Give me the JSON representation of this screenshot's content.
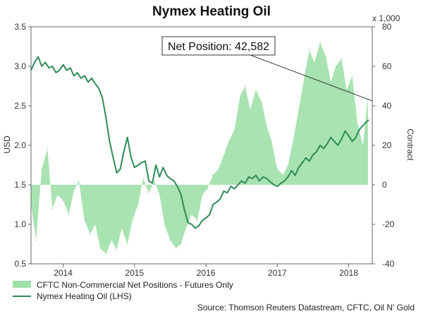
{
  "chart_data": {
    "type": "line",
    "title": "Nymex Heating Oil",
    "left_axis": {
      "label": "USD",
      "ylim": [
        0.5,
        3.5
      ],
      "ticks": [
        "0.5",
        "1.0",
        "1.5",
        "2.0",
        "2.5",
        "3.0",
        "3.5"
      ]
    },
    "right_axis": {
      "label": "Contract",
      "unit_note": "x 1,000",
      "ylim": [
        -40,
        80
      ],
      "ticks": [
        "-40",
        "-20",
        "0",
        "20",
        "40",
        "60",
        "80"
      ]
    },
    "x_axis": {
      "labels": [
        "2014",
        "2015",
        "2016",
        "2017",
        "2018"
      ]
    },
    "callout": {
      "text": "Net Position: 42,582"
    },
    "legend": [
      {
        "label": "CFTC Non-Commercial Net Positions - Futures Only",
        "kind": "area",
        "color": "#9fe0a8"
      },
      {
        "label": "Nymex Heating Oil (LHS)",
        "kind": "line",
        "color": "#2e8b57"
      }
    ],
    "source": "Source: Thomson Reuters Datastream, CFTC, Oil N' Gold",
    "grid": false,
    "legend_placement": "bottom-left",
    "series": [
      {
        "name": "CFTC Non-Commercial Net Positions - Futures Only",
        "axis": "right",
        "kind": "area",
        "x": [
          2013.55,
          2013.62,
          2013.7,
          2013.78,
          2013.85,
          2013.92,
          2014.0,
          2014.08,
          2014.15,
          2014.22,
          2014.3,
          2014.38,
          2014.45,
          2014.52,
          2014.6,
          2014.68,
          2014.75,
          2014.82,
          2014.9,
          2014.97,
          2015.05,
          2015.12,
          2015.2,
          2015.28,
          2015.35,
          2015.42,
          2015.5,
          2015.58,
          2015.65,
          2015.72,
          2015.8,
          2015.88,
          2015.95,
          2016.02,
          2016.1,
          2016.18,
          2016.25,
          2016.32,
          2016.4,
          2016.48,
          2016.55,
          2016.62,
          2016.7,
          2016.78,
          2016.85,
          2016.92,
          2017.0,
          2017.08,
          2017.15,
          2017.22,
          2017.3,
          2017.38,
          2017.45,
          2017.52,
          2017.6,
          2017.68,
          2017.75,
          2017.82,
          2017.9,
          2017.97,
          2018.05,
          2018.12,
          2018.2,
          2018.27
        ],
        "values": [
          -10,
          -28,
          8,
          18,
          -12,
          -5,
          -8,
          -15,
          -3,
          2,
          -18,
          -25,
          -20,
          -32,
          -35,
          -28,
          -33,
          -22,
          -30,
          -18,
          -10,
          3,
          -4,
          2,
          -5,
          -20,
          -28,
          -32,
          -30,
          -22,
          -15,
          -18,
          -5,
          -2,
          5,
          8,
          15,
          22,
          28,
          45,
          50,
          38,
          48,
          42,
          30,
          22,
          8,
          5,
          10,
          22,
          38,
          55,
          68,
          62,
          72,
          65,
          52,
          60,
          64,
          48,
          55,
          32,
          20,
          45
        ]
      },
      {
        "name": "Nymex Heating Oil (LHS)",
        "axis": "left",
        "kind": "line",
        "x": [
          2013.55,
          2013.6,
          2013.65,
          2013.7,
          2013.75,
          2013.8,
          2013.85,
          2013.9,
          2013.95,
          2014.0,
          2014.05,
          2014.1,
          2014.15,
          2014.2,
          2014.25,
          2014.3,
          2014.35,
          2014.4,
          2014.45,
          2014.5,
          2014.55,
          2014.6,
          2014.65,
          2014.7,
          2014.75,
          2014.8,
          2014.85,
          2014.9,
          2014.95,
          2015.0,
          2015.05,
          2015.1,
          2015.15,
          2015.2,
          2015.25,
          2015.3,
          2015.35,
          2015.4,
          2015.45,
          2015.5,
          2015.55,
          2015.6,
          2015.65,
          2015.7,
          2015.75,
          2015.8,
          2015.85,
          2015.9,
          2015.95,
          2016.0,
          2016.05,
          2016.1,
          2016.15,
          2016.2,
          2016.25,
          2016.3,
          2016.35,
          2016.4,
          2016.45,
          2016.5,
          2016.55,
          2016.6,
          2016.65,
          2016.7,
          2016.75,
          2016.8,
          2016.85,
          2016.9,
          2016.95,
          2017.0,
          2017.05,
          2017.1,
          2017.15,
          2017.2,
          2017.25,
          2017.3,
          2017.35,
          2017.4,
          2017.45,
          2017.5,
          2017.55,
          2017.6,
          2017.65,
          2017.7,
          2017.75,
          2017.8,
          2017.85,
          2017.9,
          2017.95,
          2018.0,
          2018.05,
          2018.1,
          2018.15,
          2018.2,
          2018.25,
          2018.28
        ],
        "values": [
          2.95,
          3.05,
          3.12,
          3.0,
          3.05,
          2.98,
          3.0,
          2.92,
          2.95,
          3.02,
          2.95,
          2.98,
          2.88,
          2.92,
          2.85,
          2.88,
          2.8,
          2.85,
          2.78,
          2.72,
          2.6,
          2.35,
          2.05,
          1.85,
          1.65,
          1.7,
          1.92,
          2.1,
          1.85,
          1.72,
          1.75,
          1.78,
          1.8,
          1.55,
          1.52,
          1.75,
          1.6,
          1.72,
          1.62,
          1.58,
          1.55,
          1.48,
          1.38,
          1.18,
          1.02,
          1.0,
          0.95,
          0.98,
          1.05,
          1.08,
          1.12,
          1.25,
          1.28,
          1.32,
          1.42,
          1.4,
          1.48,
          1.45,
          1.5,
          1.55,
          1.52,
          1.6,
          1.58,
          1.62,
          1.55,
          1.6,
          1.58,
          1.54,
          1.5,
          1.48,
          1.52,
          1.55,
          1.6,
          1.68,
          1.62,
          1.72,
          1.78,
          1.84,
          1.8,
          1.88,
          1.92,
          2.0,
          1.96,
          2.02,
          2.1,
          2.05,
          2.0,
          2.08,
          2.18,
          2.12,
          2.05,
          2.1,
          2.2,
          2.25,
          2.3,
          2.32
        ]
      }
    ]
  }
}
